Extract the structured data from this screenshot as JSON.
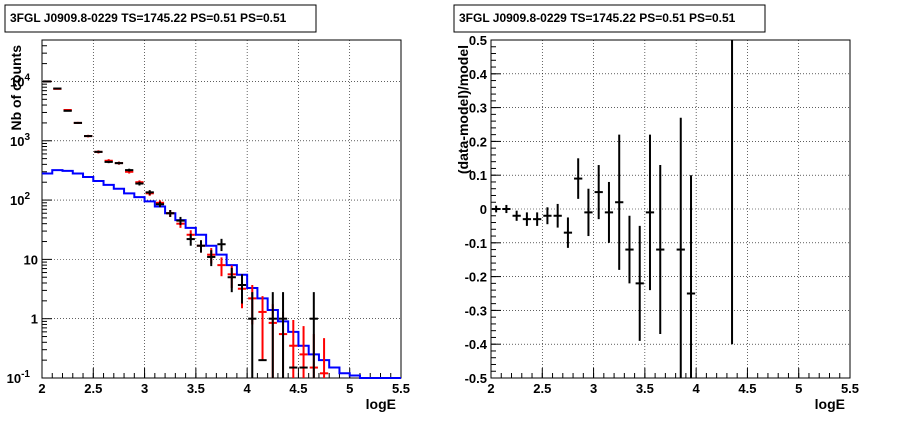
{
  "chart_data": [
    {
      "type": "scatter",
      "title": "3FGL J0909.8-0229 TS=1745.22 PS=0.51 PS=0.51",
      "xlabel": "logE",
      "ylabel": "Nb of counts",
      "xlim": [
        2,
        5.5
      ],
      "ylim": [
        0.1,
        50000
      ],
      "yscale": "log",
      "grid": true,
      "x_ticks": [
        "2",
        "2.5",
        "3",
        "3.5",
        "4",
        "4.5",
        "5",
        "5.5"
      ],
      "y_ticks": [
        {
          "value": 0.1,
          "label": "10",
          "exp": "-1"
        },
        {
          "value": 1,
          "label": "1",
          "exp": ""
        },
        {
          "value": 10,
          "label": "10",
          "exp": ""
        },
        {
          "value": 100,
          "label": "10",
          "exp": "2"
        },
        {
          "value": 1000,
          "label": "10",
          "exp": "3"
        },
        {
          "value": 10000,
          "label": "10",
          "exp": "4"
        }
      ],
      "bin_width": 0.1,
      "series": [
        {
          "color": "#ff0000",
          "x": [
            2.05,
            2.15,
            2.25,
            2.35,
            2.45,
            2.55,
            2.65,
            2.75,
            2.85,
            2.95,
            3.05,
            3.15,
            3.25,
            3.35,
            3.45,
            3.55,
            3.65,
            3.75,
            3.85,
            3.95,
            4.05,
            4.15,
            4.25,
            4.35,
            4.45,
            4.55,
            4.65,
            4.75
          ],
          "y": [
            10000,
            7500,
            3300,
            2000,
            1200,
            650,
            460,
            420,
            300,
            200,
            130,
            90,
            60,
            40,
            26,
            17,
            12,
            8,
            5.6,
            3.2,
            2.2,
            1.3,
            0.85,
            0.55,
            0.35,
            0.25,
            0.15,
            0.12
          ],
          "err_lo": [
            200,
            150,
            100,
            80,
            60,
            40,
            30,
            25,
            20,
            15,
            12,
            9,
            8,
            6,
            5,
            4,
            3.5,
            2.8,
            2.3,
            1.7,
            1.4,
            1.1,
            0.8,
            0.55,
            0.35,
            0.25,
            0.15,
            0.12
          ],
          "err_hi": [
            200,
            150,
            100,
            80,
            60,
            40,
            30,
            25,
            20,
            15,
            12,
            9,
            8,
            6,
            5,
            4,
            3.5,
            2.8,
            2.3,
            1.8,
            1.5,
            1.1,
            0.9,
            0.75,
            0.6,
            0.5,
            0.4,
            0.35
          ]
        },
        {
          "color": "#000000",
          "x": [
            2.05,
            2.15,
            2.25,
            2.35,
            2.45,
            2.55,
            2.65,
            2.75,
            2.85,
            2.95,
            3.05,
            3.15,
            3.25,
            3.35,
            3.45,
            3.55,
            3.65,
            3.75,
            3.85,
            3.95,
            4.05,
            4.15,
            4.25,
            4.35,
            4.45,
            4.55,
            4.65
          ],
          "y": [
            10000,
            7600,
            3200,
            2000,
            1200,
            650,
            440,
            420,
            320,
            190,
            135,
            85,
            60,
            45,
            22,
            17,
            11,
            18,
            5,
            3.7,
            1,
            0.2,
            1,
            1,
            0.15,
            0.15,
            1
          ],
          "err_lo": [
            100,
            90,
            60,
            45,
            35,
            25,
            21,
            20,
            18,
            14,
            12,
            9,
            8,
            7,
            5,
            4,
            3.3,
            4.2,
            2.2,
            1.9,
            1,
            0,
            1,
            1,
            0,
            0,
            1
          ],
          "err_hi": [
            100,
            90,
            60,
            45,
            35,
            25,
            21,
            20,
            18,
            14,
            12,
            9,
            8,
            7,
            5,
            4,
            3.3,
            4.2,
            2.2,
            1.9,
            1.8,
            0,
            1.8,
            1.8,
            0,
            0,
            1.8
          ]
        }
      ],
      "model_line": {
        "color": "#0000ff",
        "edges": [
          2.0,
          2.1,
          2.2,
          2.3,
          2.4,
          2.5,
          2.6,
          2.7,
          2.8,
          2.9,
          3.0,
          3.1,
          3.2,
          3.3,
          3.4,
          3.5,
          3.6,
          3.7,
          3.8,
          3.9,
          4.0,
          4.1,
          4.2,
          4.3,
          4.4,
          4.5,
          4.6,
          4.7,
          4.8,
          4.9,
          5.0,
          5.1,
          5.2,
          5.3,
          5.4,
          5.5
        ],
        "values": [
          280,
          320,
          310,
          280,
          245,
          210,
          180,
          155,
          130,
          112,
          95,
          78,
          60,
          46,
          34,
          26,
          17,
          12,
          8,
          5.5,
          3.3,
          2.2,
          1.4,
          0.9,
          0.6,
          0.35,
          0.25,
          0.2,
          0.15,
          0.12,
          0.11,
          0.1,
          0.1,
          0.1,
          0.1
        ]
      }
    },
    {
      "type": "scatter",
      "title": "3FGL J0909.8-0229 TS=1745.22 PS=0.51 PS=0.51",
      "xlabel": "logE",
      "ylabel": "(data-model)/model",
      "xlim": [
        2,
        5.5
      ],
      "ylim": [
        -0.5,
        0.5
      ],
      "grid": true,
      "x_ticks": [
        "2",
        "2.5",
        "3",
        "3.5",
        "4",
        "4.5",
        "5",
        "5.5"
      ],
      "y_ticks": [
        "-0.5",
        "-0.4",
        "-0.3",
        "-0.2",
        "-0.1",
        "0",
        "0.1",
        "0.2",
        "0.3",
        "0.4",
        "0.5"
      ],
      "bin_width": 0.1,
      "series": [
        {
          "color": "#000000",
          "x": [
            2.05,
            2.15,
            2.25,
            2.35,
            2.45,
            2.55,
            2.65,
            2.75,
            2.85,
            2.95,
            3.05,
            3.15,
            3.25,
            3.35,
            3.45,
            3.55,
            3.65,
            3.85,
            3.95,
            4.35
          ],
          "y": [
            0.0,
            0.0,
            -0.02,
            -0.03,
            -0.03,
            -0.02,
            -0.02,
            -0.07,
            0.09,
            -0.01,
            0.05,
            -0.01,
            0.02,
            -0.12,
            -0.22,
            -0.01,
            -0.12,
            -0.12,
            -0.25,
            0.5
          ],
          "err": [
            0.01,
            0.012,
            0.015,
            0.02,
            0.02,
            0.025,
            0.035,
            0.045,
            0.06,
            0.07,
            0.08,
            0.09,
            0.2,
            0.1,
            0.17,
            0.23,
            0.25,
            0.39,
            0.35,
            0.9
          ]
        }
      ]
    }
  ]
}
